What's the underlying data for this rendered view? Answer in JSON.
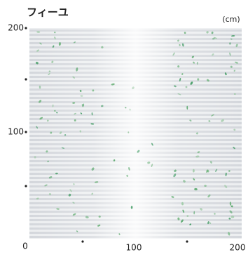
{
  "header": {
    "title": "フィーユ",
    "unit": "(cm)"
  },
  "scale": {
    "y_labels": [
      "200",
      "100"
    ],
    "x_labels": [
      "0",
      "100",
      "200"
    ]
  }
}
